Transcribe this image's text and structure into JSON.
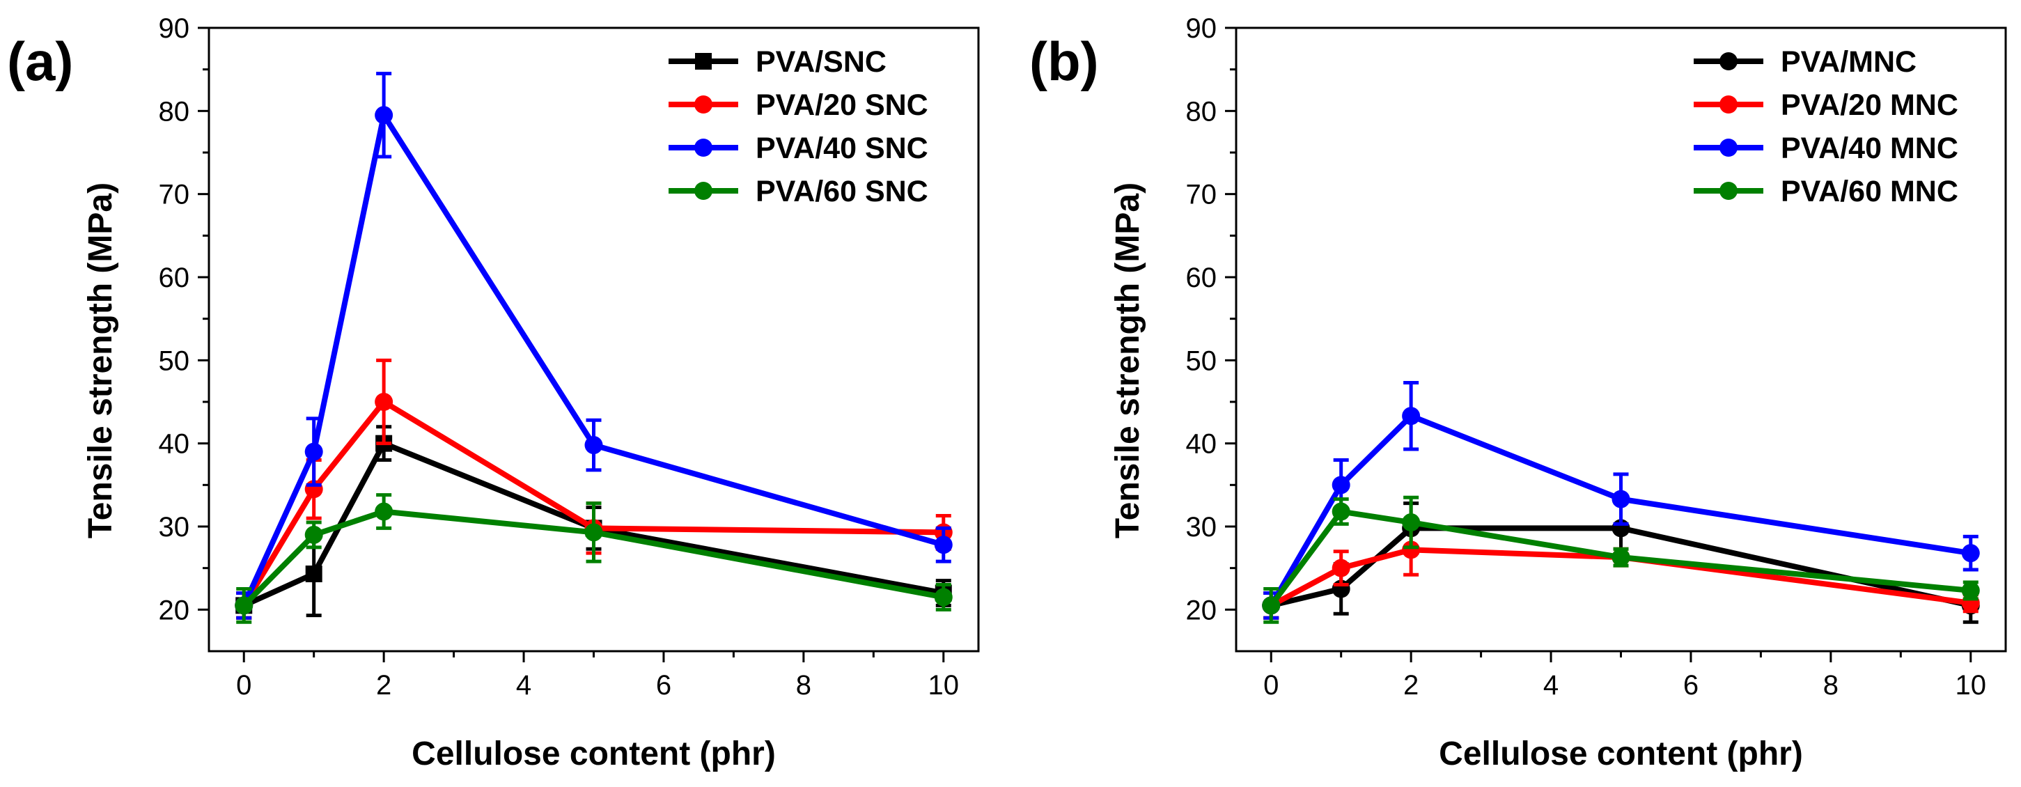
{
  "chart_data": [
    {
      "type": "line",
      "panel_label": "(a)",
      "xlabel": "Cellulose content (phr)",
      "ylabel": "Tensile strength (MPa)",
      "xlim": [
        -0.5,
        10.5
      ],
      "ylim": [
        15,
        90
      ],
      "xticks": [
        0,
        2,
        4,
        6,
        8,
        10
      ],
      "yticks": [
        20,
        30,
        40,
        50,
        60,
        70,
        80,
        90
      ],
      "grid": false,
      "legend_position": "top-right",
      "x": [
        0,
        1,
        2,
        5,
        10
      ],
      "series": [
        {
          "name": "PVA/SNC",
          "color": "#000000",
          "marker": "square",
          "values": [
            20.5,
            24.3,
            40.0,
            29.8,
            22.0
          ],
          "errors": [
            1.5,
            5.0,
            2.0,
            2.5,
            1.5
          ]
        },
        {
          "name": "PVA/20 SNC",
          "color": "#ff0000",
          "marker": "circle",
          "values": [
            20.5,
            34.5,
            45.0,
            29.8,
            29.3
          ],
          "errors": [
            1.5,
            3.5,
            5.0,
            3.0,
            2.0
          ]
        },
        {
          "name": "PVA/40 SNC",
          "color": "#0000ff",
          "marker": "circle",
          "values": [
            20.5,
            39.0,
            79.5,
            39.8,
            27.8
          ],
          "errors": [
            1.5,
            4.0,
            5.0,
            3.0,
            2.0
          ]
        },
        {
          "name": "PVA/60 SNC",
          "color": "#008000",
          "marker": "circle",
          "values": [
            20.5,
            29.0,
            31.8,
            29.3,
            21.5
          ],
          "errors": [
            2.0,
            1.5,
            2.0,
            3.5,
            1.5
          ]
        }
      ]
    },
    {
      "type": "line",
      "panel_label": "(b)",
      "xlabel": "Cellulose content (phr)",
      "ylabel": "Tensile strength (MPa)",
      "xlim": [
        -0.5,
        10.5
      ],
      "ylim": [
        15,
        90
      ],
      "xticks": [
        0,
        2,
        4,
        6,
        8,
        10
      ],
      "yticks": [
        20,
        30,
        40,
        50,
        60,
        70,
        80,
        90
      ],
      "grid": false,
      "legend_position": "top-right",
      "x": [
        0,
        1,
        2,
        5,
        10
      ],
      "series": [
        {
          "name": "PVA/MNC",
          "color": "#000000",
          "marker": "circle",
          "values": [
            20.5,
            22.5,
            29.8,
            29.8,
            20.5
          ],
          "errors": [
            1.5,
            3.0,
            3.0,
            3.5,
            2.0
          ]
        },
        {
          "name": "PVA/20 MNC",
          "color": "#ff0000",
          "marker": "circle",
          "values": [
            20.5,
            25.0,
            27.2,
            26.3,
            20.8
          ],
          "errors": [
            1.5,
            2.0,
            3.0,
            1.0,
            1.0
          ]
        },
        {
          "name": "PVA/40 MNC",
          "color": "#0000ff",
          "marker": "circle",
          "values": [
            20.5,
            35.0,
            43.3,
            33.3,
            26.8
          ],
          "errors": [
            1.5,
            3.0,
            4.0,
            3.0,
            2.0
          ]
        },
        {
          "name": "PVA/60 MNC",
          "color": "#008000",
          "marker": "circle",
          "values": [
            20.5,
            31.8,
            30.5,
            26.3,
            22.3
          ],
          "errors": [
            2.0,
            1.5,
            3.0,
            1.0,
            1.0
          ]
        }
      ]
    }
  ]
}
